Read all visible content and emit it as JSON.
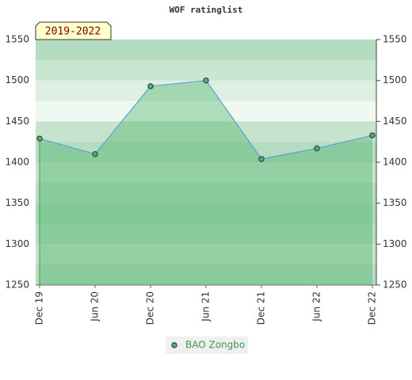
{
  "chart_data": {
    "type": "line",
    "title": "WOF ratinglist",
    "annotation": "2019-2022",
    "categories": [
      "Dec 19",
      "Jun 20",
      "Dec 20",
      "Jun 21",
      "Dec 21",
      "Jun 22",
      "Dec 22"
    ],
    "series": [
      {
        "name": "BAO Zongbo",
        "color": "#5aa0d6",
        "marker_color": "#4caf6a",
        "fill": "rgba(70,175,100,0.38)",
        "values": [
          1429,
          1410,
          1493,
          1500,
          1404,
          1417,
          1433
        ]
      }
    ],
    "ylim": [
      1250,
      1550
    ],
    "yticks": [
      1250,
      1300,
      1350,
      1400,
      1450,
      1500,
      1550
    ],
    "legend": "bottom"
  }
}
